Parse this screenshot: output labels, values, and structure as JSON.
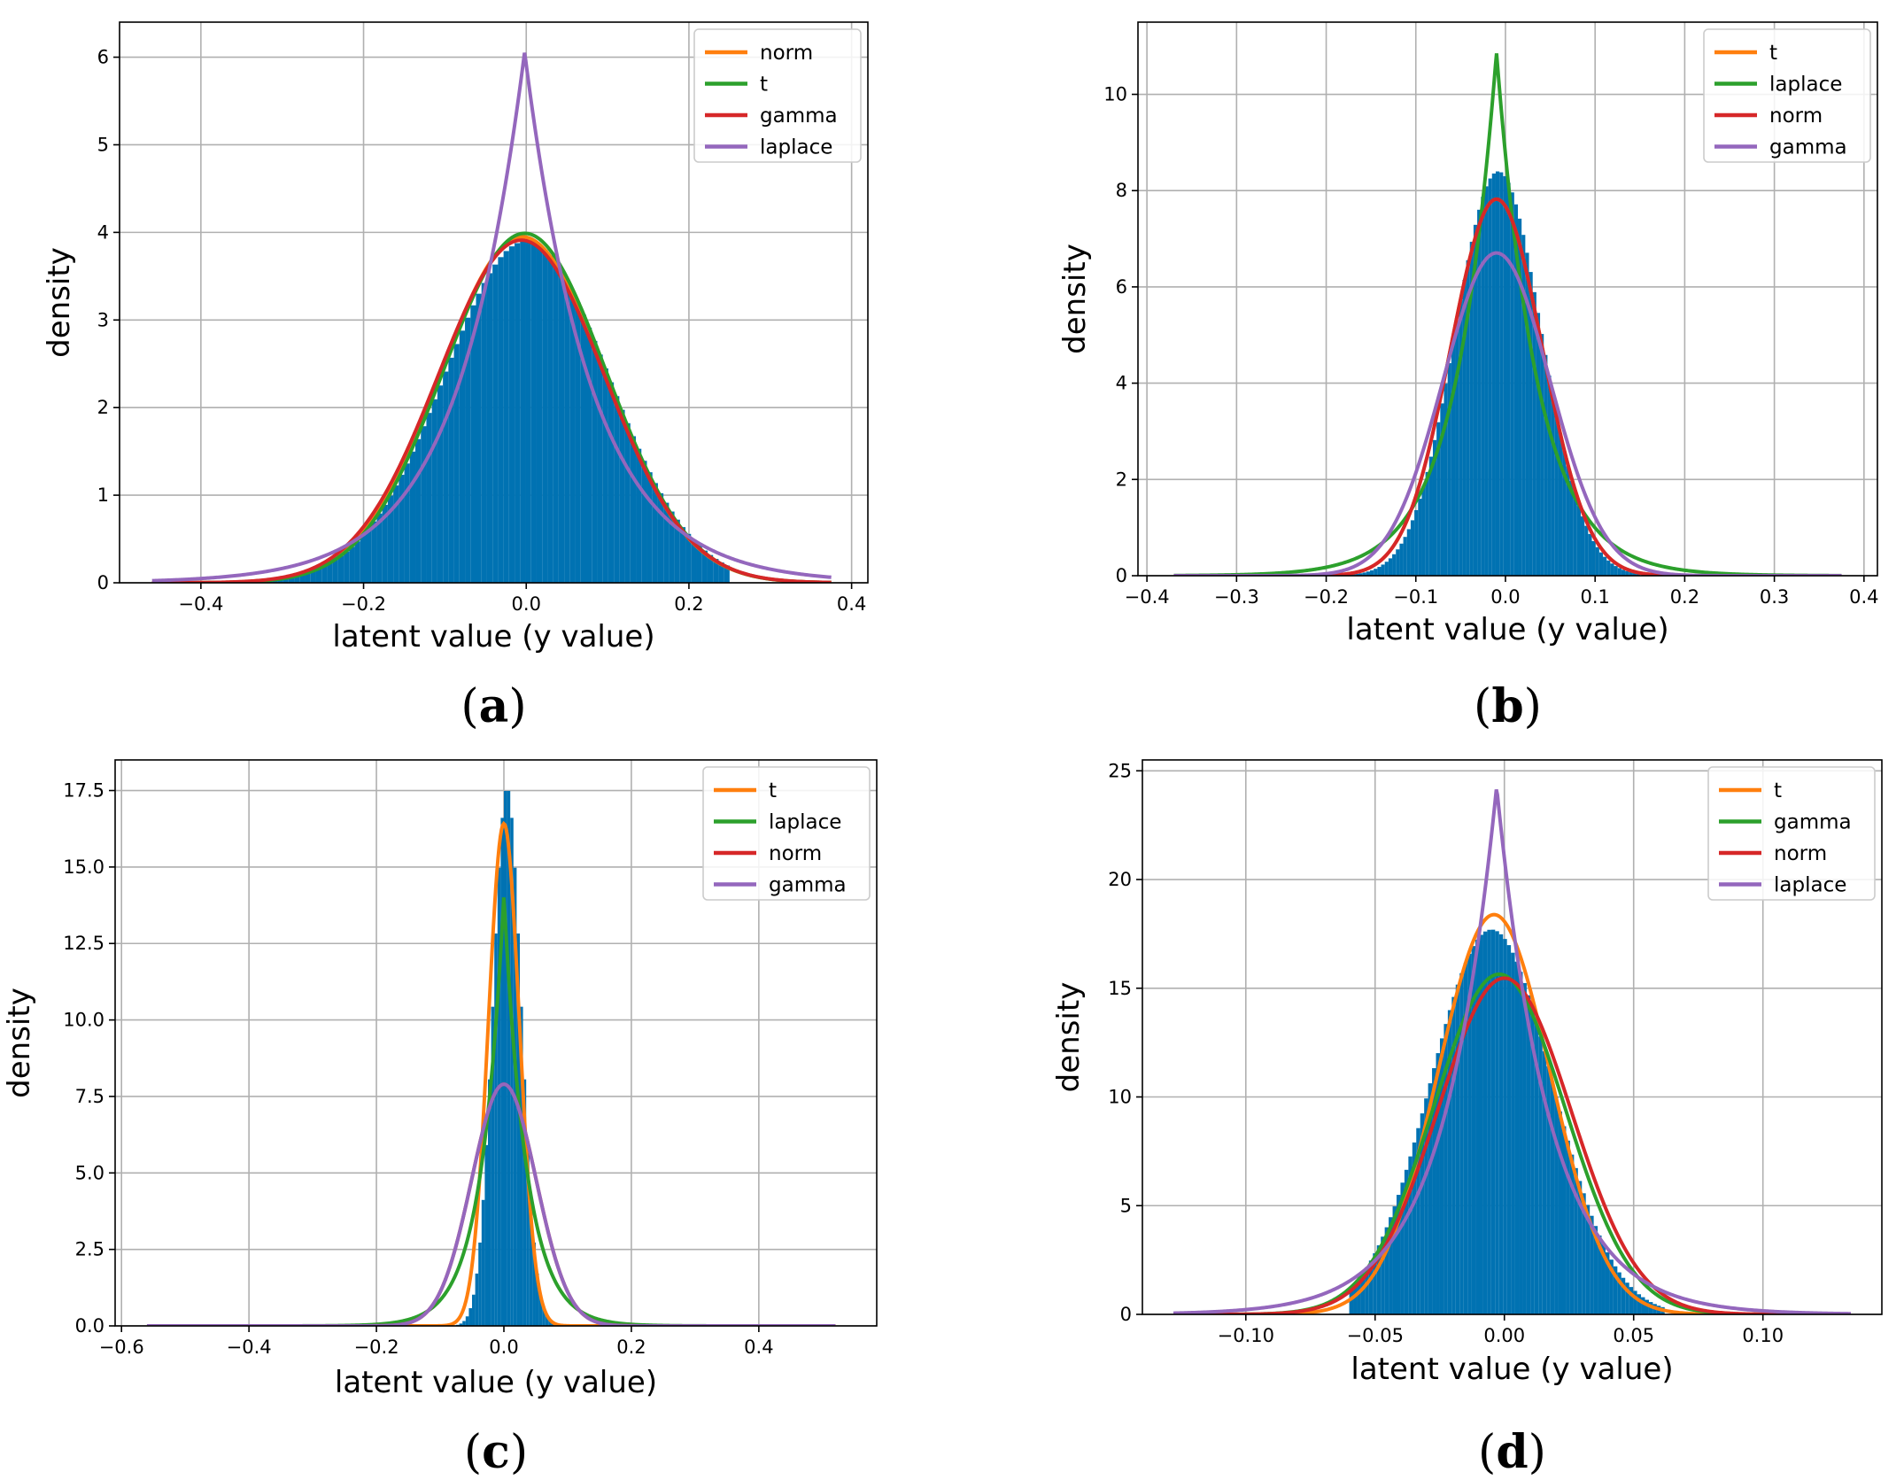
{
  "chart_data": [
    {
      "panel_label": "a",
      "type": "histogram+line",
      "xlabel": "latent value (y value)",
      "ylabel": "density",
      "xlim": [
        -0.5,
        0.42
      ],
      "ylim": [
        0,
        6.4
      ],
      "xticks": [
        -0.4,
        -0.2,
        0.0,
        0.2,
        0.4
      ],
      "xtick_labels": [
        "−0.4",
        "−0.2",
        "0.0",
        "0.2",
        "0.4"
      ],
      "yticks": [
        0,
        1,
        2,
        3,
        4,
        5,
        6
      ],
      "ytick_labels": [
        "0",
        "1",
        "2",
        "3",
        "4",
        "5",
        "6"
      ],
      "grid": true,
      "legend_position": "top-right",
      "histogram": {
        "color": "#0072b2",
        "range": [
          -0.36,
          0.25
        ],
        "bins": 90,
        "center": 0.0,
        "scale": 0.101,
        "peak": 3.9
      },
      "series": [
        {
          "name": "norm",
          "color": "#ff7f0e",
          "dist": "norm",
          "mu": -0.005,
          "sigma": 0.101,
          "range": [
            -0.46,
            0.375
          ]
        },
        {
          "name": "t",
          "color": "#2ca02c",
          "dist": "norm",
          "mu": -0.002,
          "sigma": 0.1,
          "range": [
            -0.46,
            0.375
          ]
        },
        {
          "name": "gamma",
          "color": "#d62728",
          "dist": "norm",
          "mu": -0.006,
          "sigma": 0.102,
          "range": [
            -0.46,
            0.375
          ]
        },
        {
          "name": "laplace",
          "color": "#9467bd",
          "dist": "laplace",
          "mu": -0.002,
          "b": 0.0825,
          "range": [
            -0.46,
            0.375
          ]
        }
      ]
    },
    {
      "panel_label": "b",
      "type": "histogram+line",
      "xlabel": "latent value (y value)",
      "ylabel": "density",
      "xlim": [
        -0.41,
        0.415
      ],
      "ylim": [
        0,
        11.5
      ],
      "xticks": [
        -0.4,
        -0.3,
        -0.2,
        -0.1,
        0.0,
        0.1,
        0.2,
        0.3,
        0.4
      ],
      "xtick_labels": [
        "−0.4",
        "−0.3",
        "−0.2",
        "−0.1",
        "0.0",
        "0.1",
        "0.2",
        "0.3",
        "0.4"
      ],
      "yticks": [
        0,
        2,
        4,
        6,
        8,
        10
      ],
      "ytick_labels": [
        "0",
        "2",
        "4",
        "6",
        "8",
        "10"
      ],
      "grid": true,
      "legend_position": "top-right",
      "histogram": {
        "color": "#0072b2",
        "range": [
          -0.18,
          0.15
        ],
        "bins": 80,
        "center": -0.008,
        "scale": 0.048,
        "peak": 8.4
      },
      "series": [
        {
          "name": "t",
          "color": "#ff7f0e",
          "dist": "norm",
          "mu": -0.01,
          "sigma": 0.051,
          "range": [
            -0.37,
            0.375
          ]
        },
        {
          "name": "laplace",
          "color": "#2ca02c",
          "dist": "laplace",
          "mu": -0.01,
          "b": 0.046,
          "range": [
            -0.37,
            0.375
          ]
        },
        {
          "name": "norm",
          "color": "#d62728",
          "dist": "norm",
          "mu": -0.01,
          "sigma": 0.051,
          "range": [
            -0.37,
            0.375
          ]
        },
        {
          "name": "gamma",
          "color": "#9467bd",
          "dist": "norm",
          "mu": -0.01,
          "sigma": 0.0595,
          "range": [
            -0.37,
            0.375
          ]
        }
      ]
    },
    {
      "panel_label": "c",
      "type": "histogram+line",
      "xlabel": "latent value (y value)",
      "ylabel": "density",
      "xlim": [
        -0.61,
        0.585
      ],
      "ylim": [
        0,
        18.5
      ],
      "xticks": [
        -0.6,
        -0.4,
        -0.2,
        0.0,
        0.2,
        0.4
      ],
      "xtick_labels": [
        "−0.6",
        "−0.4",
        "−0.2",
        "0.0",
        "0.2",
        "0.4"
      ],
      "yticks": [
        0,
        2.5,
        5,
        7.5,
        10,
        12.5,
        15,
        17.5
      ],
      "ytick_labels": [
        "0.0",
        "2.5",
        "5.0",
        "7.5",
        "10.0",
        "12.5",
        "15.0",
        "17.5"
      ],
      "grid": true,
      "legend_position": "top-right",
      "histogram": {
        "color": "#0072b2",
        "range": [
          -0.16,
          0.14
        ],
        "bins": 60,
        "center": 0.005,
        "scale": 0.022,
        "peak": 17.6
      },
      "series": [
        {
          "name": "t",
          "color": "#ff7f0e",
          "dist": "norm",
          "mu": 0.0,
          "sigma": 0.0243,
          "range": [
            -0.56,
            0.52
          ]
        },
        {
          "name": "laplace",
          "color": "#2ca02c",
          "dist": "laplace",
          "mu": 0.0,
          "b": 0.0355,
          "range": [
            -0.56,
            0.52
          ]
        },
        {
          "name": "norm",
          "color": "#d62728",
          "dist": "norm",
          "mu": 0.0,
          "sigma": 0.0505,
          "range": [
            -0.56,
            0.52
          ]
        },
        {
          "name": "gamma",
          "color": "#9467bd",
          "dist": "norm",
          "mu": 0.0,
          "sigma": 0.0505,
          "range": [
            -0.56,
            0.52
          ]
        }
      ]
    },
    {
      "panel_label": "d",
      "type": "histogram+line",
      "xlabel": "latent value (y value)",
      "ylabel": "density",
      "xlim": [
        -0.14,
        0.146
      ],
      "ylim": [
        0,
        25.5
      ],
      "xticks": [
        -0.1,
        -0.05,
        0.0,
        0.05,
        0.1
      ],
      "xtick_labels": [
        "−0.10",
        "−0.05",
        "0.00",
        "0.05",
        "0.10"
      ],
      "yticks": [
        0,
        5,
        10,
        15,
        20,
        25
      ],
      "ytick_labels": [
        "0",
        "5",
        "10",
        "15",
        "20",
        "25"
      ],
      "grid": true,
      "legend_position": "top-right",
      "histogram": {
        "color": "#0072b2",
        "range": [
          -0.06,
          0.062
        ],
        "bins": 80,
        "center": -0.005,
        "scale": 0.0235,
        "peak": 17.7
      },
      "series": [
        {
          "name": "t",
          "color": "#ff7f0e",
          "dist": "norm",
          "mu": -0.004,
          "sigma": 0.0217,
          "range": [
            -0.128,
            0.134
          ]
        },
        {
          "name": "gamma",
          "color": "#2ca02c",
          "dist": "norm",
          "mu": -0.002,
          "sigma": 0.0255,
          "range": [
            -0.128,
            0.134
          ]
        },
        {
          "name": "norm",
          "color": "#d62728",
          "dist": "norm",
          "mu": 0.0,
          "sigma": 0.0258,
          "range": [
            -0.128,
            0.134
          ]
        },
        {
          "name": "laplace",
          "color": "#9467bd",
          "dist": "laplace",
          "mu": -0.003,
          "b": 0.0206,
          "range": [
            -0.128,
            0.134
          ]
        }
      ]
    }
  ]
}
